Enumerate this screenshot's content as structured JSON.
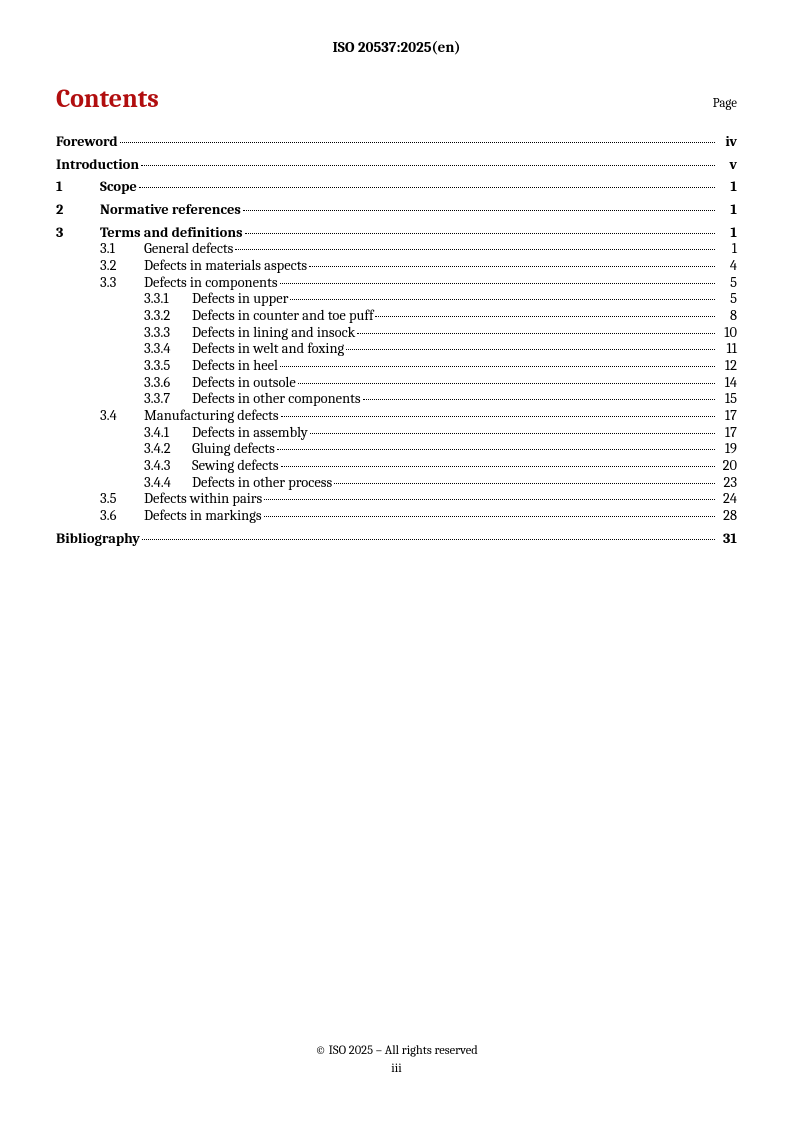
{
  "doc_header": "ISO 20537:2025(en)",
  "contents_heading": "Contents",
  "page_label": "Page",
  "title_color": "#b10e0f",
  "dot_leader_color": "#000000",
  "toc": [
    {
      "level": 0,
      "num": "",
      "title": "Foreword",
      "page": "iv",
      "bold": true,
      "spaced": false
    },
    {
      "level": 0,
      "num": "",
      "title": "Introduction",
      "page": "v",
      "bold": true,
      "spaced": true
    },
    {
      "level": 1,
      "num": "1",
      "title": "Scope",
      "page": "1",
      "bold": true,
      "spaced": true
    },
    {
      "level": 1,
      "num": "2",
      "title": "Normative references",
      "page": "1",
      "bold": true,
      "spaced": true
    },
    {
      "level": 1,
      "num": "3",
      "title": "Terms and definitions",
      "page": "1",
      "bold": true,
      "spaced": true
    },
    {
      "level": 2,
      "num": "3.1",
      "title": "General defects",
      "page": "1",
      "bold": false,
      "spaced": false
    },
    {
      "level": 2,
      "num": "3.2",
      "title": "Defects in materials aspects",
      "page": "4",
      "bold": false,
      "spaced": false
    },
    {
      "level": 2,
      "num": "3.3",
      "title": "Defects in components",
      "page": "5",
      "bold": false,
      "spaced": false
    },
    {
      "level": 3,
      "num": "3.3.1",
      "title": "Defects in upper",
      "page": "5",
      "bold": false,
      "spaced": false
    },
    {
      "level": 3,
      "num": "3.3.2",
      "title": "Defects in counter and toe puff",
      "page": "8",
      "bold": false,
      "spaced": false
    },
    {
      "level": 3,
      "num": "3.3.3",
      "title": "Defects in lining and insock",
      "page": "10",
      "bold": false,
      "spaced": false
    },
    {
      "level": 3,
      "num": "3.3.4",
      "title": "Defects in welt and foxing",
      "page": "11",
      "bold": false,
      "spaced": false
    },
    {
      "level": 3,
      "num": "3.3.5",
      "title": "Defects in heel",
      "page": "12",
      "bold": false,
      "spaced": false
    },
    {
      "level": 3,
      "num": "3.3.6",
      "title": "Defects in outsole",
      "page": "14",
      "bold": false,
      "spaced": false
    },
    {
      "level": 3,
      "num": "3.3.7",
      "title": "Defects in other components",
      "page": "15",
      "bold": false,
      "spaced": false
    },
    {
      "level": 2,
      "num": "3.4",
      "title": "Manufacturing defects",
      "page": "17",
      "bold": false,
      "spaced": false
    },
    {
      "level": 3,
      "num": "3.4.1",
      "title": "Defects in assembly",
      "page": "17",
      "bold": false,
      "spaced": false
    },
    {
      "level": 3,
      "num": "3.4.2",
      "title": "Gluing defects",
      "page": "19",
      "bold": false,
      "spaced": false
    },
    {
      "level": 3,
      "num": "3.4.3",
      "title": "Sewing defects",
      "page": "20",
      "bold": false,
      "spaced": false
    },
    {
      "level": 3,
      "num": "3.4.4",
      "title": "Defects in other process",
      "page": "23",
      "bold": false,
      "spaced": false
    },
    {
      "level": 2,
      "num": "3.5",
      "title": "Defects within pairs",
      "page": "24",
      "bold": false,
      "spaced": false
    },
    {
      "level": 2,
      "num": "3.6",
      "title": "Defects in markings",
      "page": "28",
      "bold": false,
      "spaced": false
    },
    {
      "level": 0,
      "num": "",
      "title": "Bibliography",
      "page": "31",
      "bold": true,
      "spaced": true
    }
  ],
  "footer_copyright": "© ISO 2025 – All rights reserved",
  "footer_page": "iii"
}
